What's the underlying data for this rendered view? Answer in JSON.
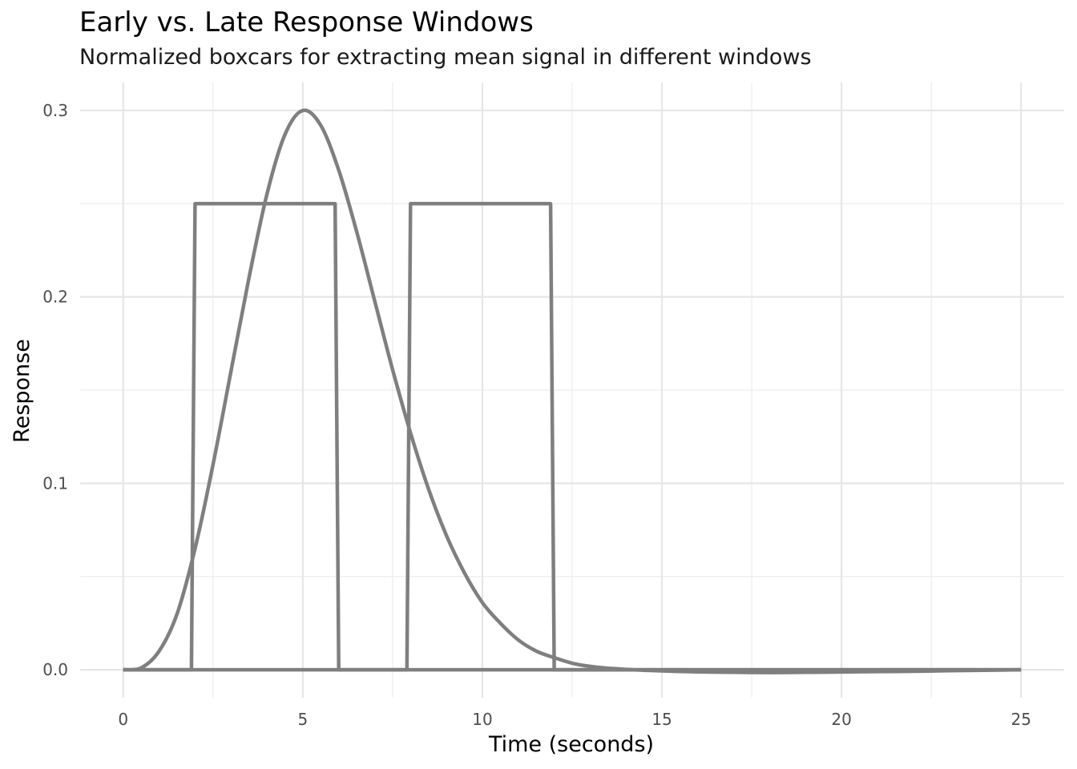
{
  "chart_data": {
    "type": "line",
    "title": "Early vs. Late Response Windows",
    "subtitle": "Normalized boxcars for extracting mean signal in different windows",
    "xlabel": "Time (seconds)",
    "ylabel": "Response",
    "xlim": [
      -1.2,
      26.2
    ],
    "ylim": [
      -0.015,
      0.315
    ],
    "x_ticks": [
      0,
      5,
      10,
      15,
      20,
      25
    ],
    "x_tick_labels": [
      "0",
      "5",
      "10",
      "15",
      "20",
      "25"
    ],
    "y_ticks": [
      0.0,
      0.1,
      0.2,
      0.3
    ],
    "y_tick_labels": [
      "0.0",
      "0.1",
      "0.2",
      "0.3"
    ],
    "grid": true,
    "line_color": "#7f7f7f",
    "series": [
      {
        "x": [
          0,
          0.5,
          1,
          1.5,
          2,
          2.5,
          3,
          3.5,
          4,
          4.5,
          5,
          5.5,
          6,
          6.5,
          7,
          7.5,
          8,
          8.5,
          9,
          9.5,
          10,
          10.5,
          11,
          11.5,
          12,
          12.5,
          13,
          13.5,
          14,
          14.5,
          15,
          15.5,
          16,
          17,
          18,
          19,
          20,
          21,
          22,
          23,
          24,
          25
        ],
        "y": [
          0,
          0.001,
          0.01,
          0.03,
          0.065,
          0.11,
          0.16,
          0.21,
          0.255,
          0.287,
          0.3,
          0.292,
          0.268,
          0.235,
          0.198,
          0.161,
          0.127,
          0.097,
          0.072,
          0.052,
          0.036,
          0.025,
          0.016,
          0.01,
          0.0065,
          0.0035,
          0.0018,
          0.0008,
          0.0002,
          -0.0003,
          -0.0006,
          -0.0009,
          -0.0011,
          -0.0014,
          -0.0015,
          -0.0014,
          -0.0012,
          -0.001,
          -0.0008,
          -0.0005,
          -0.0003,
          0
        ]
      },
      {
        "x": [
          0,
          1.9,
          2.0,
          5.9,
          6.0,
          25
        ],
        "y": [
          0,
          0,
          0.25,
          0.25,
          0,
          0
        ]
      },
      {
        "x": [
          0,
          7.9,
          8.0,
          11.9,
          12.0,
          25
        ],
        "y": [
          0,
          0,
          0.25,
          0.25,
          0,
          0
        ]
      }
    ]
  }
}
